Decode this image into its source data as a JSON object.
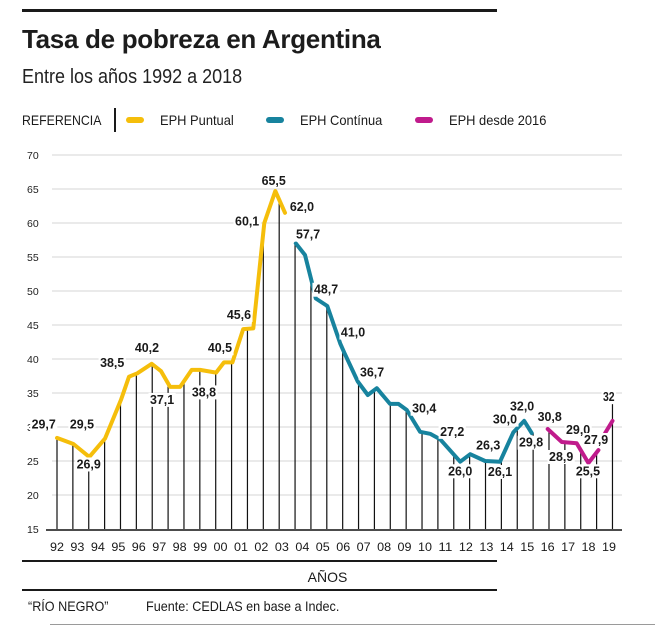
{
  "header": {
    "title": "Tasa de pobreza en Argentina",
    "subtitle": "Entre los años 1992 a 2018"
  },
  "legend": {
    "reference_label": "REFERENCIA",
    "items": [
      {
        "label": "EPH Puntual",
        "color": "#f5be0b"
      },
      {
        "label": "EPH Contínua",
        "color": "#17839e"
      },
      {
        "label": "EPH desde 2016",
        "color": "#c01b8c"
      }
    ]
  },
  "footer": {
    "credit": "“RÍO NEGRO”",
    "source": "Fuente: CEDLAS en base a Indec."
  },
  "chart_data": {
    "type": "line",
    "title": "Tasa de pobreza en Argentina",
    "subtitle": "Entre los años 1992 a 2018",
    "xlabel": "AÑOS",
    "ylabel": "",
    "ylim": [
      15,
      70
    ],
    "yticks": [
      15,
      20,
      25,
      30,
      35,
      40,
      45,
      50,
      55,
      60,
      65,
      70
    ],
    "xlim": [
      1992,
      2019
    ],
    "xtick_labels": [
      "92",
      "93",
      "94",
      "95",
      "96",
      "97",
      "98",
      "99",
      "00",
      "01",
      "02",
      "03",
      "04",
      "05",
      "06",
      "07",
      "08",
      "09",
      "10",
      "11",
      "12",
      "13",
      "14",
      "15",
      "16",
      "17",
      "18",
      "19"
    ],
    "grid": true,
    "legend_position": "top",
    "series": [
      {
        "name": "EPH Puntual",
        "color": "#f5be0b",
        "segments": [
          [
            [
              1992.0,
              28.4
            ],
            [
              1992.8,
              27.5
            ],
            [
              1993.58,
              25.6
            ],
            [
              1994.35,
              28.3
            ],
            [
              1995.13,
              34.0
            ],
            [
              1995.52,
              37.4
            ],
            [
              1995.93,
              37.9
            ],
            [
              1996.63,
              39.3
            ],
            [
              1997.09,
              38.2
            ],
            [
              1997.53,
              35.9
            ],
            [
              1998.02,
              35.9
            ],
            [
              1998.59,
              38.4
            ],
            [
              1999.0,
              38.4
            ],
            [
              1999.78,
              38.0
            ],
            [
              2000.17,
              39.5
            ],
            [
              2000.58,
              39.5
            ],
            [
              2001.11,
              44.4
            ],
            [
              2001.6,
              44.5
            ],
            [
              2002.14,
              60.0
            ],
            [
              2002.68,
              64.7
            ],
            [
              2003.15,
              61.5
            ]
          ]
        ]
      },
      {
        "name": "EPH Contínua",
        "color": "#17839e",
        "segments": [
          [
            [
              2003.68,
              57.0
            ],
            [
              2004.13,
              55.3
            ],
            [
              2004.46,
              51.4
            ],
            [
              2004.66,
              48.9
            ],
            [
              2005.22,
              47.8
            ],
            [
              2005.85,
              42.3
            ],
            [
              2006.06,
              40.9
            ],
            [
              2006.71,
              36.7
            ],
            [
              2007.2,
              34.7
            ],
            [
              2007.64,
              35.7
            ],
            [
              2008.29,
              33.4
            ],
            [
              2008.7,
              33.4
            ],
            [
              2009.11,
              32.5
            ],
            [
              2009.76,
              29.3
            ],
            [
              2010.25,
              29.0
            ],
            [
              2010.74,
              28.2
            ],
            [
              2011.72,
              24.9
            ],
            [
              2012.21,
              26.0
            ],
            [
              2012.94,
              25.0
            ],
            [
              2013.67,
              24.9
            ],
            [
              2014.32,
              29.2
            ],
            [
              2014.85,
              30.9
            ],
            [
              2015.22,
              29.1
            ]
          ]
        ]
      },
      {
        "name": "EPH desde 2016",
        "color": "#c01b8c",
        "segments": [
          [
            [
              2016.0,
              29.7
            ],
            [
              2016.69,
              27.8
            ],
            [
              2017.42,
              27.6
            ],
            [
              2017.99,
              24.7
            ],
            [
              2018.48,
              26.6
            ]
          ],
          [
            [
              2018.81,
              29.1
            ],
            [
              2019.17,
              30.9
            ]
          ]
        ]
      }
    ],
    "annotations": [
      {
        "text": "29,7",
        "x": 1991.35,
        "y": 29.8
      },
      {
        "text": "26,9",
        "x": 1993.55,
        "y": 23.9
      },
      {
        "text": "29,5",
        "x": 1993.22,
        "y": 29.8
      },
      {
        "text": "38,5",
        "x": 1994.7,
        "y": 38.8
      },
      {
        "text": "40,2",
        "x": 1996.4,
        "y": 41.0
      },
      {
        "text": "37,1",
        "x": 1997.14,
        "y": 33.4
      },
      {
        "text": "38,8",
        "x": 1999.19,
        "y": 34.5
      },
      {
        "text": "40,5",
        "x": 1999.97,
        "y": 41.0
      },
      {
        "text": "45,6",
        "x": 2000.9,
        "y": 45.9
      },
      {
        "text": "60,1",
        "x": 2001.3,
        "y": 59.6
      },
      {
        "text": "65,5",
        "x": 2002.6,
        "y": 65.6
      },
      {
        "text": "62,0",
        "x": 2003.98,
        "y": 61.8
      },
      {
        "text": "57,7",
        "x": 2004.28,
        "y": 57.7
      },
      {
        "text": "48,7",
        "x": 2005.16,
        "y": 49.6
      },
      {
        "text": "41,0",
        "x": 2006.48,
        "y": 43.3
      },
      {
        "text": "36,7",
        "x": 2007.41,
        "y": 37.4
      },
      {
        "text": "30,4",
        "x": 2009.96,
        "y": 32.1
      },
      {
        "text": "27,2",
        "x": 2011.33,
        "y": 28.7
      },
      {
        "text": "26,0",
        "x": 2011.72,
        "y": 22.9
      },
      {
        "text": "26,3",
        "x": 2013.09,
        "y": 26.7
      },
      {
        "text": "26,1",
        "x": 2013.67,
        "y": 22.8
      },
      {
        "text": "30,0",
        "x": 2013.91,
        "y": 30.5
      },
      {
        "text": "32,0",
        "x": 2014.75,
        "y": 32.4
      },
      {
        "text": "29,8",
        "x": 2015.19,
        "y": 27.1
      },
      {
        "text": "30,8",
        "x": 2016.1,
        "y": 30.9
      },
      {
        "text": "28,9",
        "x": 2016.66,
        "y": 25.0
      },
      {
        "text": "29,0",
        "x": 2017.49,
        "y": 29.0
      },
      {
        "text": "27,9",
        "x": 2018.37,
        "y": 27.5
      },
      {
        "text": "25,5",
        "x": 2017.97,
        "y": 22.9
      },
      {
        "text": "32",
        "x": 2018.99,
        "y": 33.8
      }
    ],
    "stems": {
      "first_year": 1992.0,
      "last_year": 2019.17,
      "count": 36
    }
  }
}
